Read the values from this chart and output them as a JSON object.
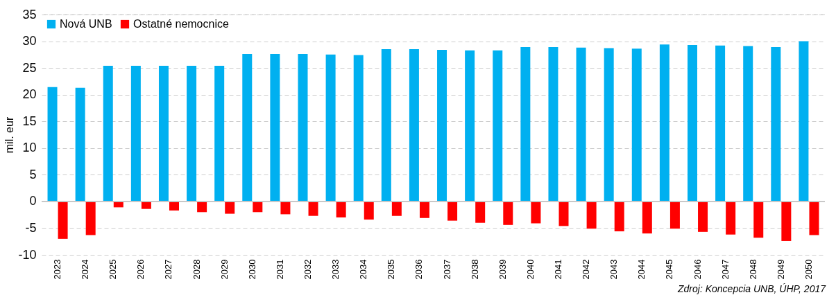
{
  "chart_data": {
    "type": "bar",
    "categories": [
      "2023",
      "2024",
      "2025",
      "2026",
      "2027",
      "2028",
      "2029",
      "2030",
      "2031",
      "2032",
      "2033",
      "2034",
      "2035",
      "2036",
      "2037",
      "2038",
      "2039",
      "2040",
      "2041",
      "2042",
      "2043",
      "2044",
      "2045",
      "2046",
      "2047",
      "2048",
      "2049",
      "2050"
    ],
    "series": [
      {
        "name": "Nová UNB",
        "color": "#00b0f0",
        "values": [
          21.4,
          21.3,
          25.4,
          25.4,
          25.4,
          25.4,
          25.4,
          27.6,
          27.6,
          27.6,
          27.5,
          27.4,
          28.5,
          28.5,
          28.4,
          28.3,
          28.3,
          28.9,
          28.9,
          28.8,
          28.7,
          28.6,
          29.4,
          29.3,
          29.2,
          29.1,
          28.9,
          30.0
        ]
      },
      {
        "name": "Ostatné nemocnice",
        "color": "#ff0000",
        "values": [
          -7.0,
          -6.3,
          -1.1,
          -1.4,
          -1.7,
          -2.0,
          -2.3,
          -2.0,
          -2.4,
          -2.7,
          -3.0,
          -3.4,
          -2.7,
          -3.1,
          -3.6,
          -4.0,
          -4.4,
          -4.1,
          -4.6,
          -5.1,
          -5.6,
          -6.0,
          -5.1,
          -5.7,
          -6.2,
          -6.8,
          -7.4,
          -6.3
        ]
      }
    ],
    "ylabel": "mil. eur",
    "ylim": [
      -10,
      35
    ],
    "yticks": [
      -10,
      -5,
      0,
      5,
      10,
      15,
      20,
      25,
      30,
      35
    ],
    "grid": "y",
    "legend": "top left",
    "annotations": [
      "Zdroj: Koncepcia UNB, ÚHP, 2017"
    ]
  }
}
